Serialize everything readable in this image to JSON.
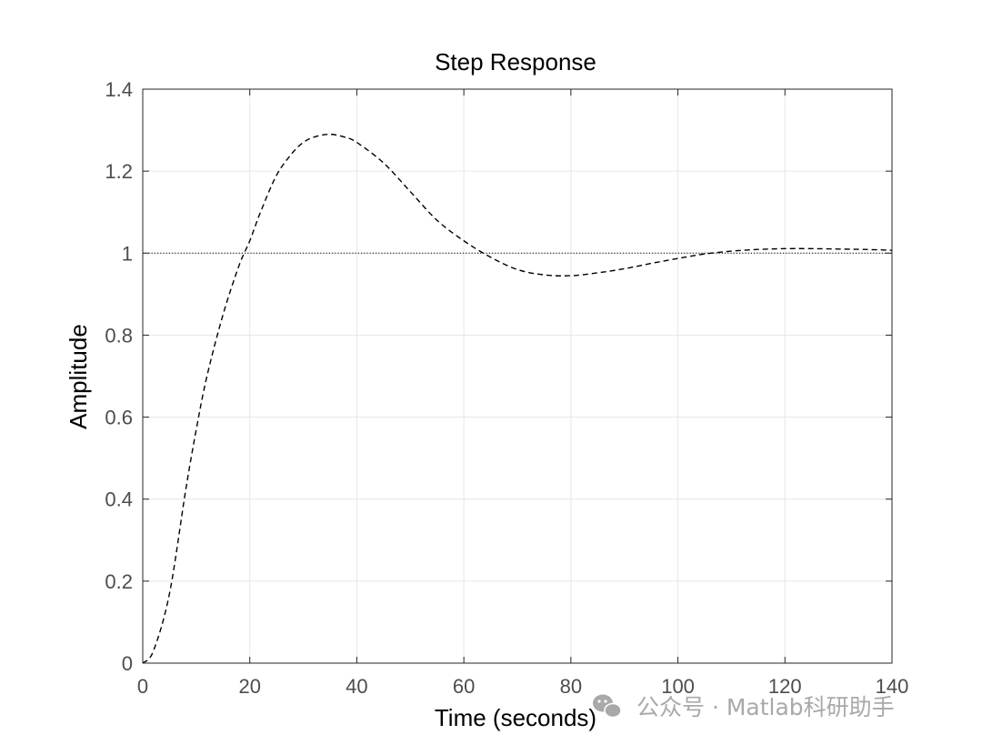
{
  "chart_data": {
    "type": "line",
    "title": "Step Response",
    "xlabel": "Time (seconds)",
    "ylabel": "Amplitude",
    "xlim": [
      0,
      140
    ],
    "ylim": [
      0,
      1.4
    ],
    "xticks": [
      0,
      20,
      40,
      60,
      80,
      100,
      120,
      140
    ],
    "xtick_labels": [
      "0",
      "20",
      "40",
      "60",
      "80",
      "100",
      "120",
      "140"
    ],
    "yticks": [
      0,
      0.2,
      0.4,
      0.6,
      0.8,
      1,
      1.2,
      1.4
    ],
    "ytick_labels": [
      "0",
      "0.2",
      "0.4",
      "0.6",
      "0.8",
      "1",
      "1.2",
      "1.4"
    ],
    "grid": true,
    "series": [
      {
        "line_style": "dashed",
        "color": "#000000",
        "x": [
          0,
          2,
          5,
          8,
          10,
          12,
          15,
          18,
          20,
          22,
          25,
          28,
          30,
          32,
          35,
          38,
          40,
          45,
          50,
          55,
          60,
          65,
          70,
          75,
          80,
          85,
          90,
          95,
          100,
          105,
          110,
          115,
          120,
          125,
          130,
          135,
          140
        ],
        "y": [
          0,
          0.03,
          0.17,
          0.42,
          0.57,
          0.7,
          0.85,
          0.97,
          1.03,
          1.1,
          1.19,
          1.245,
          1.27,
          1.283,
          1.29,
          1.282,
          1.27,
          1.22,
          1.15,
          1.08,
          1.03,
          0.99,
          0.96,
          0.947,
          0.945,
          0.952,
          0.962,
          0.975,
          0.987,
          0.998,
          1.005,
          1.009,
          1.011,
          1.011,
          1.01,
          1.009,
          1.007
        ]
      },
      {
        "line_style": "dotted",
        "color": "#000000",
        "x": [
          0,
          140
        ],
        "y": [
          1,
          1
        ]
      }
    ]
  },
  "watermark": {
    "text": "公众号 · Matlab科研助手",
    "icon": "wechat-icon",
    "color": "#a9a9a9"
  }
}
